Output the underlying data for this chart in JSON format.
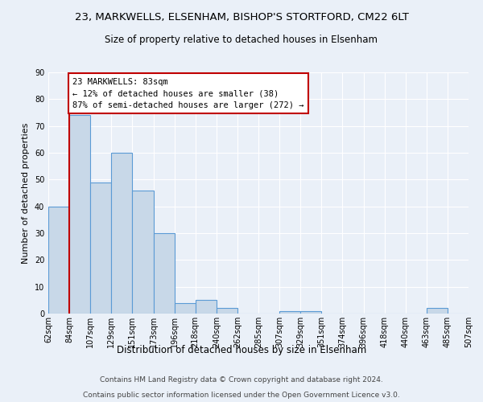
{
  "title1": "23, MARKWELLS, ELSENHAM, BISHOP'S STORTFORD, CM22 6LT",
  "title2": "Size of property relative to detached houses in Elsenham",
  "xlabel": "Distribution of detached houses by size in Elsenham",
  "ylabel": "Number of detached properties",
  "bar_values": [
    40,
    74,
    49,
    60,
    46,
    30,
    4,
    5,
    2,
    0,
    0,
    1,
    1,
    0,
    0,
    0,
    0,
    0,
    2,
    0
  ],
  "bin_labels": [
    "62sqm",
    "84sqm",
    "107sqm",
    "129sqm",
    "151sqm",
    "173sqm",
    "196sqm",
    "218sqm",
    "240sqm",
    "262sqm",
    "285sqm",
    "307sqm",
    "329sqm",
    "351sqm",
    "374sqm",
    "396sqm",
    "418sqm",
    "440sqm",
    "463sqm",
    "485sqm",
    "507sqm"
  ],
  "bar_color": "#c8d8e8",
  "bar_edge_color": "#5b9bd5",
  "vline_x": 1,
  "vline_color": "#c00000",
  "annotation_text": "23 MARKWELLS: 83sqm\n← 12% of detached houses are smaller (38)\n87% of semi-detached houses are larger (272) →",
  "annotation_box_color": "white",
  "annotation_box_edge": "#c00000",
  "ylim": [
    0,
    90
  ],
  "yticks": [
    0,
    10,
    20,
    30,
    40,
    50,
    60,
    70,
    80,
    90
  ],
  "footer1": "Contains HM Land Registry data © Crown copyright and database right 2024.",
  "footer2": "Contains public sector information licensed under the Open Government Licence v3.0.",
  "bg_color": "#eaf0f8",
  "plot_bg_color": "#eaf0f8",
  "title1_fontsize": 9.5,
  "title2_fontsize": 8.5,
  "xlabel_fontsize": 8.5,
  "ylabel_fontsize": 8,
  "tick_fontsize": 7,
  "footer_fontsize": 6.5,
  "ann_fontsize": 7.5
}
